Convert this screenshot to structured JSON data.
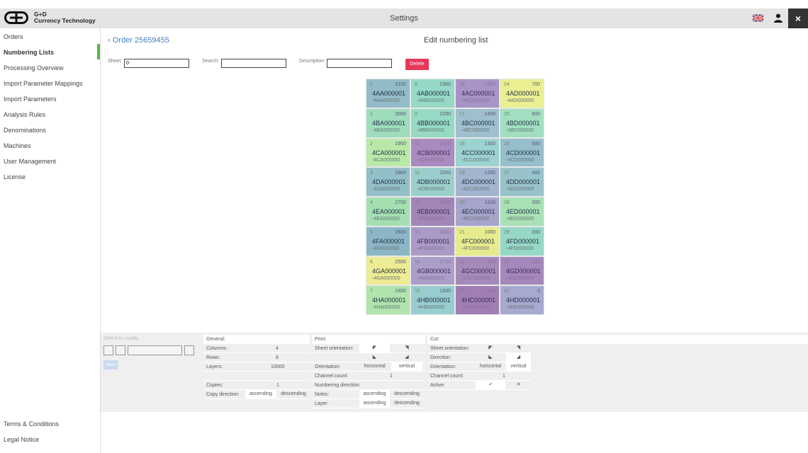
{
  "header": {
    "brand_line1": "G+D",
    "brand_line2": "Currency Technology",
    "title": "Settings",
    "language": "uk-flag-icon",
    "close": "×"
  },
  "sidebar": {
    "items": [
      {
        "label": "Orders"
      },
      {
        "label": "Numbering Lists",
        "active": true
      },
      {
        "label": "Processing Overview"
      },
      {
        "label": "Import Parameter Mappings"
      },
      {
        "label": "Import Parameters"
      },
      {
        "label": "Analysis Rules"
      },
      {
        "label": "Denominations"
      },
      {
        "label": "Machines"
      },
      {
        "label": "User Management"
      },
      {
        "label": "License"
      }
    ],
    "footer": [
      {
        "label": "Terms & Conditions"
      },
      {
        "label": "Legal Notice"
      }
    ]
  },
  "colors": {
    "accent": "#58b947",
    "link": "#4a7fc1",
    "delete": "#e8375a"
  },
  "main": {
    "back": "Order 25659455",
    "title": "Edit numbering list",
    "filters": {
      "sheet_label": "Sheet:",
      "sheet_value": "0",
      "search_label": "Search:",
      "search_value": "",
      "description_label": "Description:",
      "description_value": "",
      "delete": "Delete"
    },
    "cells": [
      {
        "i": "0",
        "v": "3100",
        "s": "4AA000001",
        "u": "-4AA000000",
        "c": "#93bcc8"
      },
      {
        "i": "1",
        "v": "3000",
        "s": "4BA000001",
        "u": "-4BA000000",
        "c": "#9edcbc"
      },
      {
        "i": "2",
        "v": "2900",
        "s": "4CA000001",
        "u": "-4CA000000",
        "c": "#b9e8a8"
      },
      {
        "i": "3",
        "v": "2800",
        "s": "4DA000001",
        "u": "-4DA000000",
        "c": "#93bfc9"
      },
      {
        "i": "4",
        "v": "2700",
        "s": "4EA000001",
        "u": "-4EA000000",
        "c": "#a4dfb2"
      },
      {
        "i": "5",
        "v": "2600",
        "s": "4FA000001",
        "u": "-4FA000000",
        "c": "#8cb6c6"
      },
      {
        "i": "6",
        "v": "2500",
        "s": "4GA000001",
        "u": "-4GA000000",
        "c": "#eeec93"
      },
      {
        "i": "7",
        "v": "2400",
        "s": "4HA000001",
        "u": "-4HA000000",
        "c": "#b0e4ac"
      },
      {
        "i": "8",
        "v": "2300",
        "s": "4AB000001",
        "u": "-4AB000000",
        "c": "#95d9c6"
      },
      {
        "i": "9",
        "v": "2200",
        "s": "4BB000001",
        "u": "-4BB000000",
        "c": "#97dac4"
      },
      {
        "i": "10",
        "v": "2100",
        "s": "4CB000001",
        "u": "-4CB000000",
        "c": "#a98cbf",
        "dark": true
      },
      {
        "i": "11",
        "v": "2000",
        "s": "4DB000001",
        "u": "-4DB000000",
        "c": "#9ccfcc"
      },
      {
        "i": "12",
        "v": "1900",
        "s": "4EB000001",
        "u": "-4EB000000",
        "c": "#a286b8",
        "dark": true
      },
      {
        "i": "13",
        "v": "1800",
        "s": "4FB000001",
        "u": "-4FB000000",
        "c": "#ab9ac6",
        "dark": true
      },
      {
        "i": "14",
        "v": "1700",
        "s": "4GB000001",
        "u": "-4GB000000",
        "c": "#ab9ec9",
        "dark": true
      },
      {
        "i": "15",
        "v": "1600",
        "s": "4HB000001",
        "u": "-4HB000000",
        "c": "#98cdd0"
      },
      {
        "i": "16",
        "v": "1500",
        "s": "4AC000001",
        "u": "-4AC000000",
        "c": "#a894c5",
        "dark": true
      },
      {
        "i": "17",
        "v": "1400",
        "s": "4BC000001",
        "u": "-4BC000000",
        "c": "#9fbfcf"
      },
      {
        "i": "18",
        "v": "1300",
        "s": "4CC000001",
        "u": "-4CC000000",
        "c": "#9cd2cf"
      },
      {
        "i": "19",
        "v": "1200",
        "s": "4DC000001",
        "u": "-4DC000000",
        "c": "#a3b4cf"
      },
      {
        "i": "20",
        "v": "1100",
        "s": "4EC000001",
        "u": "-4EC000000",
        "c": "#a7a4cc"
      },
      {
        "i": "21",
        "v": "1000",
        "s": "4FC000001",
        "u": "-4FC000000",
        "c": "#e8eb8d"
      },
      {
        "i": "22",
        "v": "900",
        "s": "4GC000001",
        "u": "-4GC000000",
        "c": "#a48ab9",
        "dark": true
      },
      {
        "i": "23",
        "v": "800",
        "s": "4HC000001",
        "u": "-4HC000000",
        "c": "#a07fb4",
        "dark": true
      },
      {
        "i": "24",
        "v": "700",
        "s": "4AD000001",
        "u": "-4AD000000",
        "c": "#ebef92"
      },
      {
        "i": "25",
        "v": "600",
        "s": "4BD000001",
        "u": "-4BD000000",
        "c": "#a1dfc0"
      },
      {
        "i": "26",
        "v": "500",
        "s": "4CD000001",
        "u": "-4CD000000",
        "c": "#97bfcb"
      },
      {
        "i": "27",
        "v": "400",
        "s": "4DD000001",
        "u": "-4DD000000",
        "c": "#98c3cb"
      },
      {
        "i": "28",
        "v": "300",
        "s": "4ED000001",
        "u": "-4ED000000",
        "c": "#a8e1b5"
      },
      {
        "i": "29",
        "v": "200",
        "s": "4FD000001",
        "u": "-4FD000000",
        "c": "#96d7c6"
      },
      {
        "i": "30",
        "v": "100",
        "s": "4GD000001",
        "u": "-4GD000000",
        "c": "#a488bc",
        "dark": true
      },
      {
        "i": "31",
        "v": "0",
        "s": "4HD000001",
        "u": "-4HD000000",
        "c": "#a7a9cf"
      }
    ]
  },
  "panel": {
    "select_label": "Select to modify",
    "save": "Save",
    "general": {
      "title": "General:",
      "columns_label": "Columns:",
      "columns": "4",
      "rows_label": "Rows:",
      "rows": "8",
      "layers_label": "Layers:",
      "layers": "10000",
      "copies_label": "Copies:",
      "copies": "1",
      "copy_direction_label": "Copy direction:",
      "ascending": "ascending",
      "descending": "descending"
    },
    "print": {
      "title": "Print:",
      "sheet_orientation_label": "Sheet orientation:",
      "orientation_label": "Orientation:",
      "horizontal": "horizontal",
      "vertical": "vertical",
      "channel_count_label": "Channel count:",
      "channel_count": "1",
      "numbering_direction_label": "Numbering direction:",
      "notes_label": "Notes:",
      "layer_label": "Layer:",
      "ascending": "ascending",
      "descending": "descending"
    },
    "cut": {
      "title": "Cut:",
      "sheet_orientation_label": "Sheet orientation:",
      "direction_label": "Direction:",
      "orientation_label": "Orientation:",
      "horizontal": "horizontal",
      "vertical": "vertical",
      "channel_count_label": "Channel count:",
      "channel_count": "1",
      "active_label": "Active:",
      "active_yes": "✔",
      "active_no": "✕"
    }
  }
}
